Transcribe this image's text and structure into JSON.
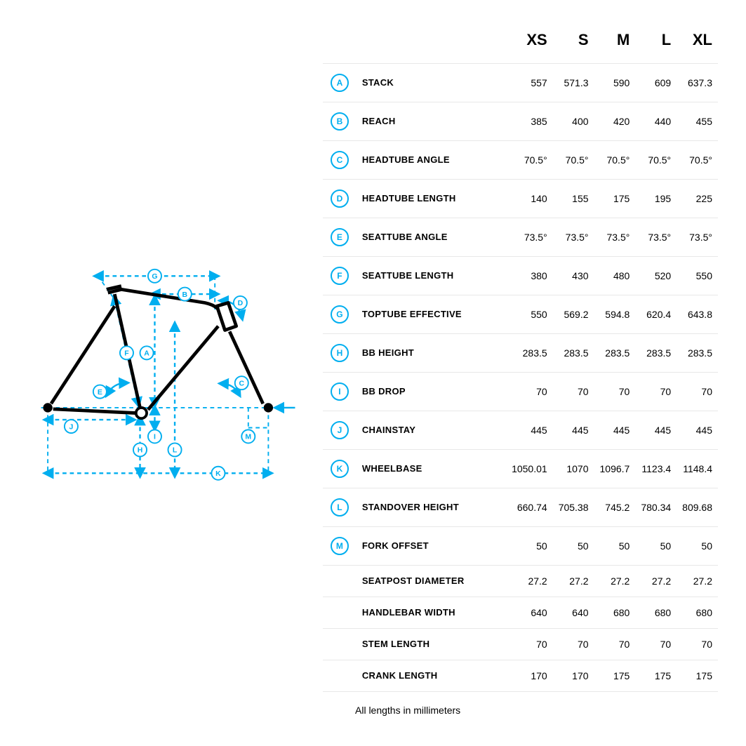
{
  "colors": {
    "accent": "#00aeef",
    "frame": "#000000",
    "border": "#e8e8e8",
    "text": "#000000",
    "bg": "#ffffff"
  },
  "diagram": {
    "type": "bike-frame-geometry",
    "accent": "#00aeef",
    "frame_color": "#000000",
    "stroke_width": 3,
    "dash": "6,5",
    "labels": [
      "A",
      "B",
      "C",
      "D",
      "E",
      "F",
      "G",
      "H",
      "I",
      "J",
      "K",
      "L",
      "M"
    ]
  },
  "table": {
    "sizes": [
      "XS",
      "S",
      "M",
      "L",
      "XL"
    ],
    "rows": [
      {
        "letter": "A",
        "label": "STACK",
        "values": [
          "557",
          "571.3",
          "590",
          "609",
          "637.3"
        ]
      },
      {
        "letter": "B",
        "label": "REACH",
        "values": [
          "385",
          "400",
          "420",
          "440",
          "455"
        ]
      },
      {
        "letter": "C",
        "label": "HEADTUBE ANGLE",
        "values": [
          "70.5°",
          "70.5°",
          "70.5°",
          "70.5°",
          "70.5°"
        ]
      },
      {
        "letter": "D",
        "label": "HEADTUBE LENGTH",
        "values": [
          "140",
          "155",
          "175",
          "195",
          "225"
        ]
      },
      {
        "letter": "E",
        "label": "SEATTUBE ANGLE",
        "values": [
          "73.5°",
          "73.5°",
          "73.5°",
          "73.5°",
          "73.5°"
        ]
      },
      {
        "letter": "F",
        "label": "SEATTUBE LENGTH",
        "values": [
          "380",
          "430",
          "480",
          "520",
          "550"
        ]
      },
      {
        "letter": "G",
        "label": "TOPTUBE EFFECTIVE",
        "values": [
          "550",
          "569.2",
          "594.8",
          "620.4",
          "643.8"
        ]
      },
      {
        "letter": "H",
        "label": "BB HEIGHT",
        "values": [
          "283.5",
          "283.5",
          "283.5",
          "283.5",
          "283.5"
        ]
      },
      {
        "letter": "I",
        "label": "BB DROP",
        "values": [
          "70",
          "70",
          "70",
          "70",
          "70"
        ]
      },
      {
        "letter": "J",
        "label": "CHAINSTAY",
        "values": [
          "445",
          "445",
          "445",
          "445",
          "445"
        ]
      },
      {
        "letter": "K",
        "label": "WHEELBASE",
        "values": [
          "1050.01",
          "1070",
          "1096.7",
          "1123.4",
          "1148.4"
        ]
      },
      {
        "letter": "L",
        "label": "STANDOVER HEIGHT",
        "values": [
          "660.74",
          "705.38",
          "745.2",
          "780.34",
          "809.68"
        ]
      },
      {
        "letter": "M",
        "label": "FORK OFFSET",
        "values": [
          "50",
          "50",
          "50",
          "50",
          "50"
        ]
      },
      {
        "letter": "",
        "label": "SEATPOST DIAMETER",
        "values": [
          "27.2",
          "27.2",
          "27.2",
          "27.2",
          "27.2"
        ]
      },
      {
        "letter": "",
        "label": "HANDLEBAR WIDTH",
        "values": [
          "640",
          "640",
          "680",
          "680",
          "680"
        ]
      },
      {
        "letter": "",
        "label": "STEM LENGTH",
        "values": [
          "70",
          "70",
          "70",
          "70",
          "70"
        ]
      },
      {
        "letter": "",
        "label": "CRANK LENGTH",
        "values": [
          "170",
          "170",
          "175",
          "175",
          "175"
        ]
      }
    ],
    "footnote": "All lengths in millimeters"
  }
}
